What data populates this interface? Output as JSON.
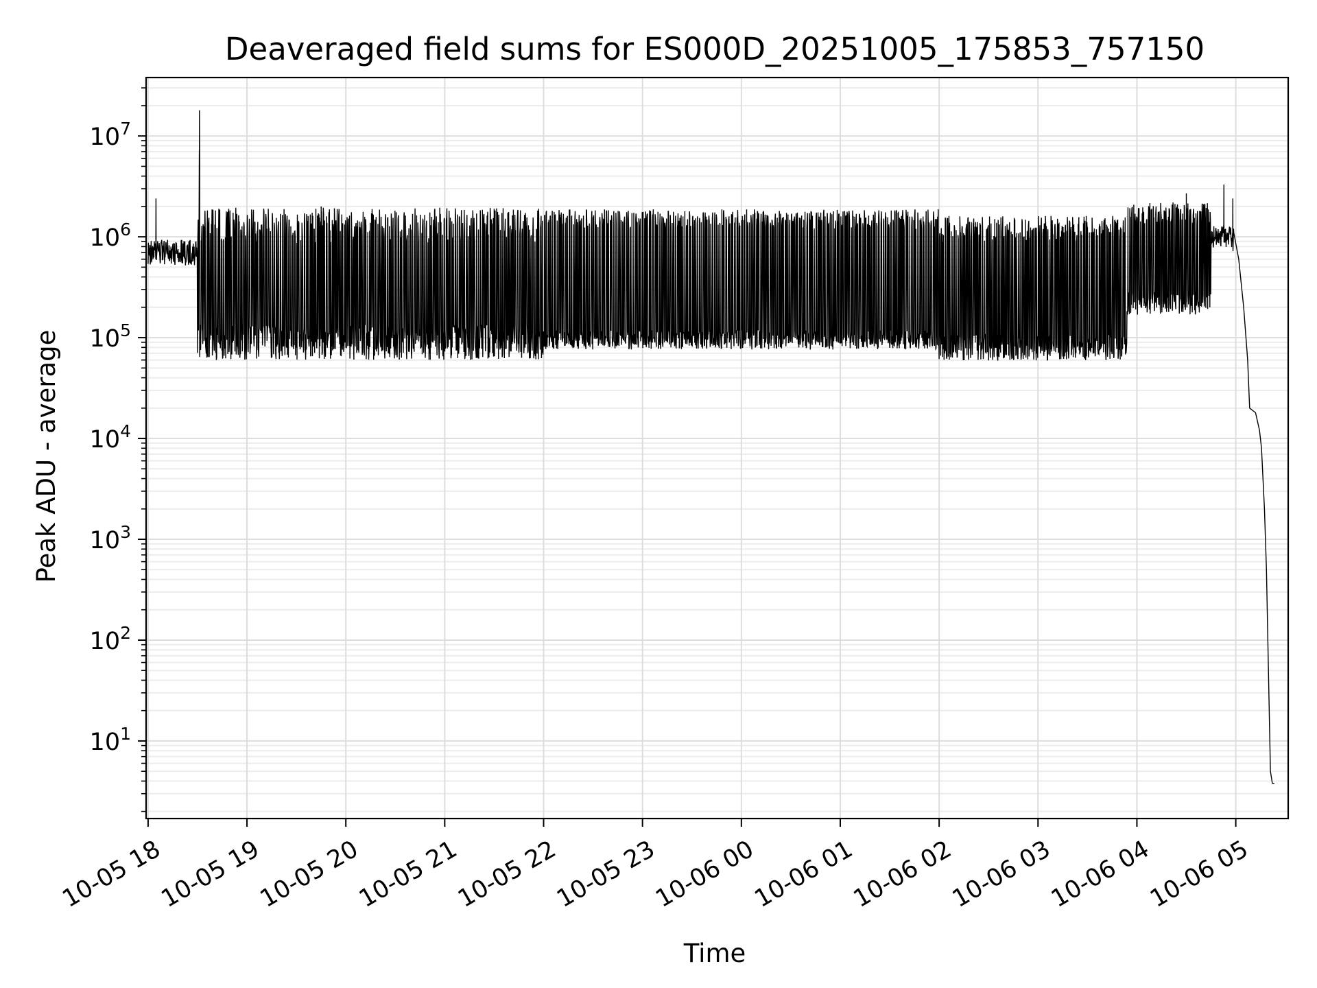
{
  "chart_data": {
    "type": "line",
    "title": "Deaveraged field sums for ES000D_20251005_175853_757150",
    "xlabel": "Time",
    "ylabel": "Peak ADU - average",
    "yscale": "log",
    "ylim": [
      1.7,
      38000000
    ],
    "xlim_hours": [
      -0.02,
      11.53
    ],
    "x_ticks": [
      {
        "hour": 0,
        "label": "10-05 18"
      },
      {
        "hour": 1,
        "label": "10-05 19"
      },
      {
        "hour": 2,
        "label": "10-05 20"
      },
      {
        "hour": 3,
        "label": "10-05 21"
      },
      {
        "hour": 4,
        "label": "10-05 22"
      },
      {
        "hour": 5,
        "label": "10-05 23"
      },
      {
        "hour": 6,
        "label": "10-06 00"
      },
      {
        "hour": 7,
        "label": "10-06 01"
      },
      {
        "hour": 8,
        "label": "10-06 02"
      },
      {
        "hour": 9,
        "label": "10-06 03"
      },
      {
        "hour": 10,
        "label": "10-06 04"
      },
      {
        "hour": 11,
        "label": "10-06 05"
      }
    ],
    "y_ticks": [
      {
        "value": 10,
        "base": "10",
        "exp": "1"
      },
      {
        "value": 100,
        "base": "10",
        "exp": "2"
      },
      {
        "value": 1000,
        "base": "10",
        "exp": "3"
      },
      {
        "value": 10000,
        "base": "10",
        "exp": "4"
      },
      {
        "value": 100000,
        "base": "10",
        "exp": "5"
      },
      {
        "value": 1000000,
        "base": "10",
        "exp": "6"
      },
      {
        "value": 10000000,
        "base": "10",
        "exp": "7"
      }
    ],
    "grid": true,
    "line_color": "#000000",
    "series": [
      {
        "name": "deaveraged field sum",
        "segments": [
          {
            "from_hour": 0.0,
            "to_hour": 0.5,
            "mode": "stable",
            "base": 700000,
            "spread": 1.35
          },
          {
            "from_hour": 0.5,
            "to_hour": 4.0,
            "mode": "oscillate",
            "high": 1300000,
            "low": 90000,
            "spread": 1.5
          },
          {
            "from_hour": 4.0,
            "to_hour": 8.0,
            "mode": "oscillate",
            "high": 1500000,
            "low": 95000,
            "spread": 1.25
          },
          {
            "from_hour": 8.0,
            "to_hour": 9.9,
            "mode": "oscillate",
            "high": 1200000,
            "low": 80000,
            "spread": 1.35
          },
          {
            "from_hour": 9.9,
            "to_hour": 10.75,
            "mode": "oscillate",
            "high": 1700000,
            "low": 220000,
            "spread": 1.3
          },
          {
            "from_hour": 10.75,
            "to_hour": 10.98,
            "mode": "stable",
            "base": 1000000,
            "spread": 1.3
          }
        ],
        "spikes": [
          {
            "hour": 0.08,
            "value": 2400000
          },
          {
            "hour": 0.52,
            "value": 18000000
          },
          {
            "hour": 1.75,
            "value": 2000000
          },
          {
            "hour": 3.5,
            "value": 1900000
          },
          {
            "hour": 10.5,
            "value": 2700000
          },
          {
            "hour": 10.88,
            "value": 3300000
          },
          {
            "hour": 10.97,
            "value": 2400000
          }
        ],
        "tail": [
          {
            "hour": 10.98,
            "value": 1100000
          },
          {
            "hour": 11.03,
            "value": 600000
          },
          {
            "hour": 11.08,
            "value": 200000
          },
          {
            "hour": 11.12,
            "value": 60000
          },
          {
            "hour": 11.14,
            "value": 20000
          },
          {
            "hour": 11.2,
            "value": 18000
          },
          {
            "hour": 11.24,
            "value": 12000
          },
          {
            "hour": 11.26,
            "value": 8000
          },
          {
            "hour": 11.29,
            "value": 2000
          },
          {
            "hour": 11.31,
            "value": 500
          },
          {
            "hour": 11.33,
            "value": 50
          },
          {
            "hour": 11.35,
            "value": 5
          },
          {
            "hour": 11.37,
            "value": 3.8
          },
          {
            "hour": 11.39,
            "value": 3.8
          }
        ]
      }
    ]
  }
}
